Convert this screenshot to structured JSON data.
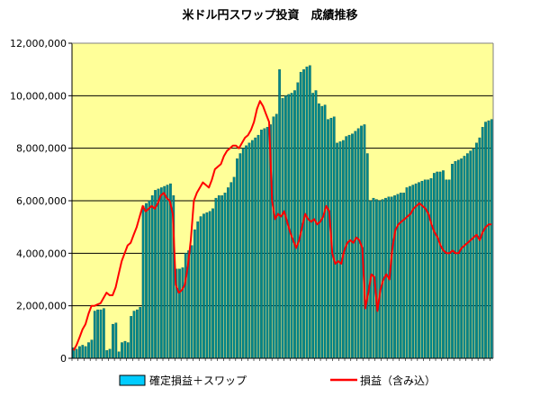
{
  "chart_data": {
    "type": "bar",
    "title": "米ドル円スワップ投資　成績推移",
    "ylim": [
      0,
      12000000
    ],
    "yticks": [
      0,
      2000000,
      4000000,
      6000000,
      8000000,
      10000000,
      12000000
    ],
    "ytick_labels": [
      "0",
      "2,000,000",
      "4,000,000",
      "6,000,000",
      "8,000,000",
      "10,000,000",
      "12,000,000"
    ],
    "grid": true,
    "legend_position": "bottom",
    "colors": {
      "plot_bg": "#FFFF99",
      "bar": "#00868B",
      "bar_legend": "#00CCFF",
      "line": "#FF0000",
      "grid": "#000000"
    },
    "series": [
      {
        "name": "確定損益＋スワップ",
        "type": "bar",
        "values": [
          400000,
          350000,
          450000,
          500000,
          450000,
          600000,
          700000,
          1800000,
          1850000,
          1850000,
          1900000,
          300000,
          350000,
          1300000,
          1350000,
          250000,
          600000,
          650000,
          600000,
          1600000,
          1800000,
          1850000,
          1950000,
          5800000,
          5900000,
          6000000,
          6200000,
          6400000,
          6450000,
          6500000,
          6550000,
          6600000,
          6650000,
          6200000,
          3400000,
          3400000,
          3450000,
          4000000,
          4100000,
          4300000,
          4900000,
          5200000,
          5400000,
          5500000,
          5550000,
          5600000,
          5700000,
          6100000,
          6200000,
          6200000,
          6300000,
          6500000,
          6700000,
          6900000,
          7600000,
          7800000,
          8000000,
          8100000,
          8200000,
          8300000,
          8400000,
          8500000,
          8700000,
          8750000,
          8800000,
          8900000,
          9200000,
          9300000,
          11000000,
          9900000,
          10000000,
          10050000,
          10100000,
          10200000,
          10500000,
          10900000,
          11000000,
          11100000,
          11150000,
          10100000,
          10200000,
          9700000,
          9600000,
          9650000,
          9100000,
          9150000,
          9200000,
          8200000,
          8250000,
          8300000,
          8450000,
          8500000,
          8550000,
          8650000,
          8750000,
          8850000,
          8900000,
          7800000,
          6000000,
          6100000,
          6050000,
          6000000,
          6050000,
          6100000,
          6150000,
          6150000,
          6200000,
          6250000,
          6300000,
          6300000,
          6500000,
          6550000,
          6600000,
          6650000,
          6700000,
          6750000,
          6800000,
          6800000,
          6850000,
          7050000,
          7100000,
          7100000,
          7150000,
          6800000,
          6800000,
          7400000,
          7500000,
          7550000,
          7600000,
          7700000,
          7800000,
          7900000,
          8000000,
          8200000,
          8400000,
          8800000,
          9000000,
          9050000,
          9100000
        ]
      },
      {
        "name": "損益（含み込）",
        "type": "line",
        "values": [
          300000,
          500000,
          800000,
          1100000,
          1300000,
          1700000,
          2000000,
          2000000,
          2050000,
          2100000,
          2300000,
          2500000,
          2400000,
          2400000,
          2700000,
          3200000,
          3700000,
          4000000,
          4300000,
          4400000,
          4700000,
          5000000,
          5400000,
          5800000,
          5600000,
          5700000,
          5800000,
          5700000,
          5900000,
          6200000,
          6300000,
          6100000,
          6000000,
          5500000,
          2800000,
          2500000,
          2600000,
          2800000,
          3500000,
          4500000,
          6000000,
          6300000,
          6500000,
          6700000,
          6600000,
          6500000,
          6800000,
          7200000,
          7300000,
          7400000,
          7700000,
          7900000,
          8000000,
          8100000,
          8100000,
          8000000,
          8200000,
          8400000,
          8500000,
          8700000,
          9000000,
          9500000,
          9800000,
          9600000,
          9300000,
          9000000,
          6000000,
          5300000,
          5500000,
          5400000,
          5600000,
          5200000,
          4800000,
          4500000,
          4200000,
          4500000,
          5000000,
          5500000,
          5300000,
          5200000,
          5300000,
          5100000,
          5200000,
          5400000,
          5800000,
          5600000,
          4000000,
          3600000,
          3700000,
          3600000,
          4100000,
          4400000,
          4500000,
          4400000,
          4600000,
          4500000,
          4200000,
          1900000,
          2500000,
          3200000,
          3100000,
          1800000,
          2600000,
          3000000,
          3200000,
          3000000,
          4200000,
          4900000,
          5100000,
          5200000,
          5300000,
          5400000,
          5500000,
          5700000,
          5800000,
          5900000,
          5800000,
          5700000,
          5500000,
          5100000,
          4800000,
          4600000,
          4300000,
          4100000,
          4000000,
          4000000,
          4100000,
          4000000,
          4000000,
          4200000,
          4300000,
          4400000,
          4500000,
          4600000,
          4700000,
          4500000,
          4800000,
          5000000,
          5100000,
          5100000
        ]
      }
    ]
  }
}
